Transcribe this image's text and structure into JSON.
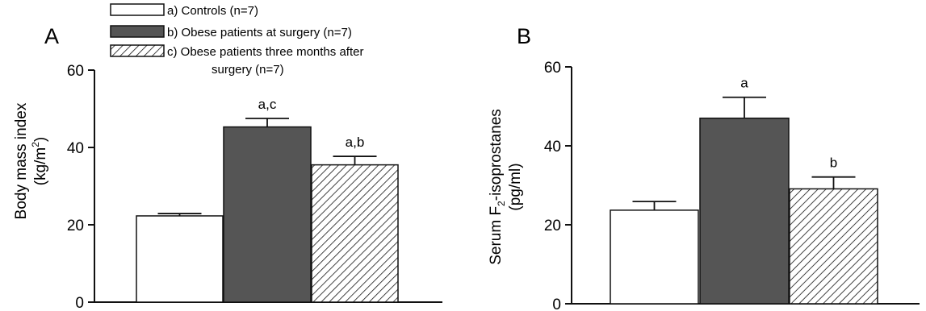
{
  "legend": {
    "items": [
      {
        "label": "a) Controls (n=7)",
        "style": "white"
      },
      {
        "label": "b) Obese patients at surgery (n=7)",
        "style": "dark"
      },
      {
        "label_line1": "c) Obese patients three months after",
        "label_line2": "surgery (n=7)",
        "style": "hatched"
      }
    ]
  },
  "colors": {
    "dark_bar": "#555555",
    "axis": "#111111",
    "white_bar": "#ffffff"
  },
  "chart_data": [
    {
      "panel_label": "A",
      "type": "bar",
      "ylabel_line1": "Body mass index",
      "ylabel_line2_prefix": "(kg/m",
      "ylabel_line2_sup": "2",
      "ylabel_line2_suffix": ")",
      "ylim": [
        0,
        60
      ],
      "yticks": [
        "0",
        "20",
        "40",
        "60"
      ],
      "grid": false,
      "series": [
        {
          "group": "a",
          "value": 22.3,
          "error": 0.6,
          "annotation": ""
        },
        {
          "group": "b",
          "value": 45.3,
          "error": 2.2,
          "annotation": "a,c"
        },
        {
          "group": "c",
          "value": 35.5,
          "error": 2.2,
          "annotation": "a,b"
        }
      ]
    },
    {
      "panel_label": "B",
      "type": "bar",
      "ylabel_line1_prefix": "Serum F",
      "ylabel_line1_sub": "2",
      "ylabel_line1_suffix": "-isoprostanes",
      "ylabel_line2": "(pg/ml)",
      "ylim": [
        0,
        60
      ],
      "yticks": [
        "0",
        "20",
        "40",
        "60"
      ],
      "grid": false,
      "series": [
        {
          "group": "a",
          "value": 23.7,
          "error": 2.2,
          "annotation": ""
        },
        {
          "group": "b",
          "value": 47.0,
          "error": 5.3,
          "annotation": "a"
        },
        {
          "group": "c",
          "value": 29.1,
          "error": 3.0,
          "annotation": "b"
        }
      ]
    }
  ]
}
